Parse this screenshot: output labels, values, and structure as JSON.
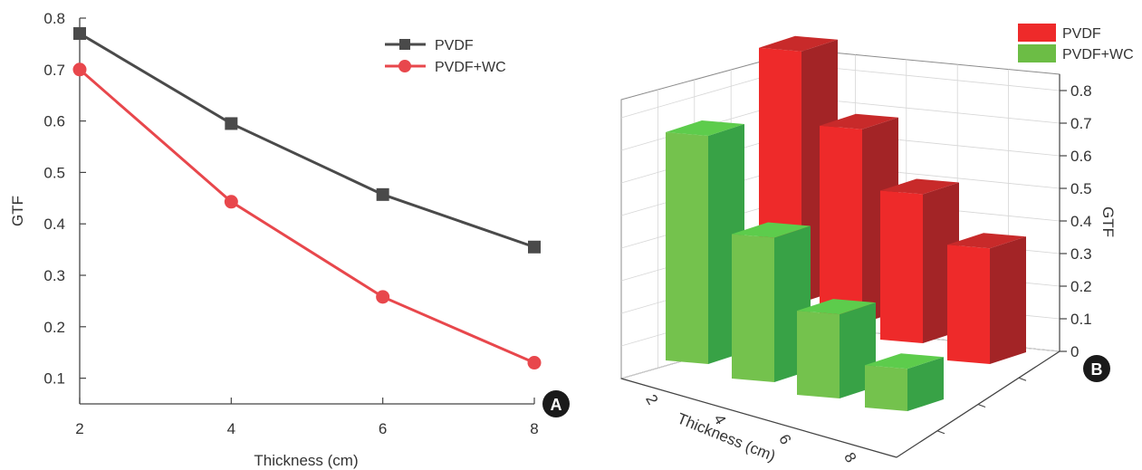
{
  "chart_data": [
    {
      "type": "line",
      "panel_label": "A",
      "xlabel": "Thickness (cm)",
      "ylabel": "GTF",
      "x": [
        2,
        4,
        6,
        8
      ],
      "xticks": [
        "2",
        "4",
        "6",
        "8"
      ],
      "yticks": [
        "0.1",
        "0.2",
        "0.3",
        "0.4",
        "0.5",
        "0.6",
        "0.7",
        "0.8"
      ],
      "xlim": [
        2,
        8
      ],
      "ylim": [
        0.05,
        0.8
      ],
      "legend_position": "top-right",
      "series": [
        {
          "name": "PVDF",
          "values": [
            0.77,
            0.595,
            0.457,
            0.355
          ],
          "color": "#4a4a4a",
          "marker": "square"
        },
        {
          "name": "PVDF+WC",
          "values": [
            0.7,
            0.443,
            0.258,
            0.13
          ],
          "color": "#e8474c",
          "marker": "circle"
        }
      ]
    },
    {
      "type": "bar",
      "style": "3d",
      "panel_label": "B",
      "xlabel": "Thickness (cm)",
      "zlabel": "GTF",
      "categories": [
        "2",
        "4",
        "6",
        "8"
      ],
      "zticks": [
        "0",
        "0.1",
        "0.2",
        "0.3",
        "0.4",
        "0.5",
        "0.6",
        "0.7",
        "0.8"
      ],
      "zlim": [
        0,
        0.85
      ],
      "legend_position": "top-right",
      "series": [
        {
          "name": "PVDF",
          "values": [
            0.77,
            0.595,
            0.457,
            0.355
          ],
          "color": "#ee2a2a"
        },
        {
          "name": "PVDF+WC",
          "values": [
            0.7,
            0.443,
            0.258,
            0.13
          ],
          "color": "#6cbd45"
        }
      ]
    }
  ]
}
